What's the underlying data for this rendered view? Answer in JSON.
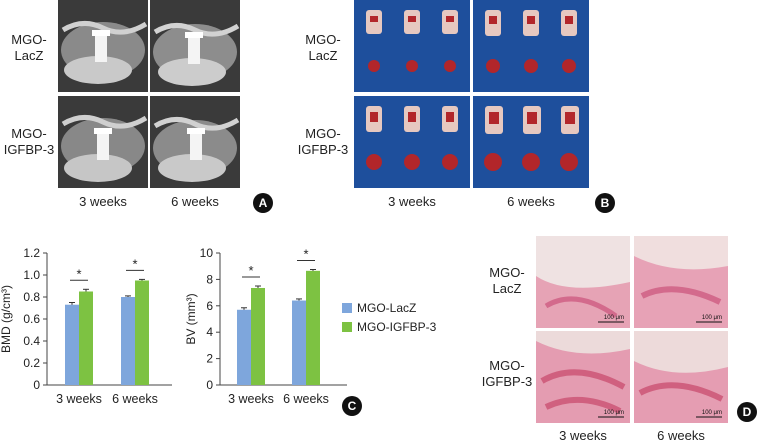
{
  "panels": {
    "A": {
      "badge": "A",
      "row_labels": [
        "MGO-\nLacZ",
        "MGO-\nIGFBP-3"
      ],
      "col_labels": [
        "3 weeks",
        "6 weeks"
      ]
    },
    "B": {
      "badge": "B",
      "row_labels": [
        "MGO-\nLacZ",
        "MGO-\nIGFBP-3"
      ],
      "col_labels": [
        "3 weeks",
        "6 weeks"
      ]
    },
    "C": {
      "badge": "C"
    },
    "D": {
      "badge": "D",
      "row_labels": [
        "MGO-\nLacZ",
        "MGO-\nIGFBP-3"
      ],
      "col_labels": [
        "3 weeks",
        "6 weeks"
      ],
      "scale_label": "100 μm"
    }
  },
  "colors": {
    "lacz": "#7ea6dc",
    "igfbp3": "#7dc242",
    "blue_bg": "#1e4f9c"
  },
  "chart_data": [
    {
      "type": "bar",
      "categories": [
        "3 weeks",
        "6 weeks"
      ],
      "ylabel": "BMD (g/cm³)",
      "ylim": [
        0,
        1.2
      ],
      "yticks": [
        "0",
        "0.2",
        "0.4",
        "0.6",
        "0.8",
        "1.0",
        "1.2"
      ],
      "series": [
        {
          "name": "MGO-LacZ",
          "values": [
            0.73,
            0.8
          ],
          "errors": [
            0.02,
            0.01
          ]
        },
        {
          "name": "MGO-IGFBP-3",
          "values": [
            0.85,
            0.95
          ],
          "errors": [
            0.02,
            0.01
          ]
        }
      ],
      "significance": [
        "*",
        "*"
      ]
    },
    {
      "type": "bar",
      "categories": [
        "3 weeks",
        "6 weeks"
      ],
      "ylabel": "BV (mm³)",
      "ylim": [
        0,
        10
      ],
      "yticks": [
        "0",
        "2",
        "4",
        "6",
        "8",
        "10"
      ],
      "series": [
        {
          "name": "MGO-LacZ",
          "values": [
            5.7,
            6.4
          ],
          "errors": [
            0.15,
            0.12
          ]
        },
        {
          "name": "MGO-IGFBP-3",
          "values": [
            7.35,
            8.65
          ],
          "errors": [
            0.15,
            0.1
          ]
        }
      ],
      "significance": [
        "*",
        "*"
      ],
      "legend": [
        "MGO-LacZ",
        "MGO-IGFBP-3"
      ]
    }
  ]
}
